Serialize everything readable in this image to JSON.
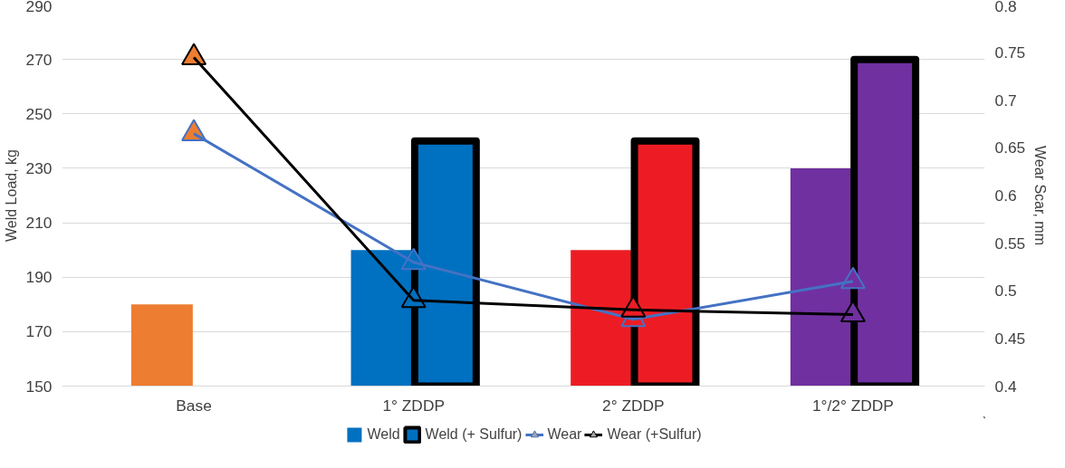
{
  "chart_data": {
    "type": "bar",
    "categories": [
      "Base",
      "1° ZDDP",
      "2° ZDDP",
      "1°/2° ZDDP"
    ],
    "ylabel": "Weld Load, kg",
    "y2label": "Wear Scar, mm",
    "ylim": [
      150,
      290
    ],
    "yticks": [
      150,
      170,
      190,
      210,
      230,
      250,
      270,
      290
    ],
    "y2lim": [
      0.4,
      0.8
    ],
    "y2ticks": [
      0.4,
      0.45,
      0.5,
      0.55,
      0.6,
      0.65,
      0.7,
      0.75,
      0.8
    ],
    "grid": "y",
    "legend": "bottom",
    "marker": "triangle",
    "series": [
      {
        "name": "Weld",
        "colors": [
          "#ed7d31",
          "#0070c0",
          "#ed1c24",
          "#7030a0"
        ],
        "values": [
          180,
          200,
          200,
          230
        ]
      },
      {
        "name": "Weld (+ Sulfur)",
        "color": "#000000",
        "colors": [
          "#ed7d31",
          "#0070c0",
          "#ed1c24",
          "#7030a0"
        ],
        "values": [
          null,
          240,
          240,
          270
        ]
      },
      {
        "name": "Wear",
        "type": "line",
        "axis": "y2",
        "color": "#4472c4",
        "colors": [
          "#ed7d31",
          "#0070c0",
          "#ed1c24",
          "#7030a0"
        ],
        "values": [
          0.665,
          0.53,
          0.47,
          0.51
        ]
      },
      {
        "name": "Wear (+Sulfur)",
        "type": "line",
        "axis": "y2",
        "color": "#000000",
        "colors": [
          "#ed7d31",
          "#0070c0",
          "#ed1c24",
          "#7030a0"
        ],
        "values": [
          0.745,
          0.49,
          0.48,
          0.475
        ]
      }
    ]
  }
}
